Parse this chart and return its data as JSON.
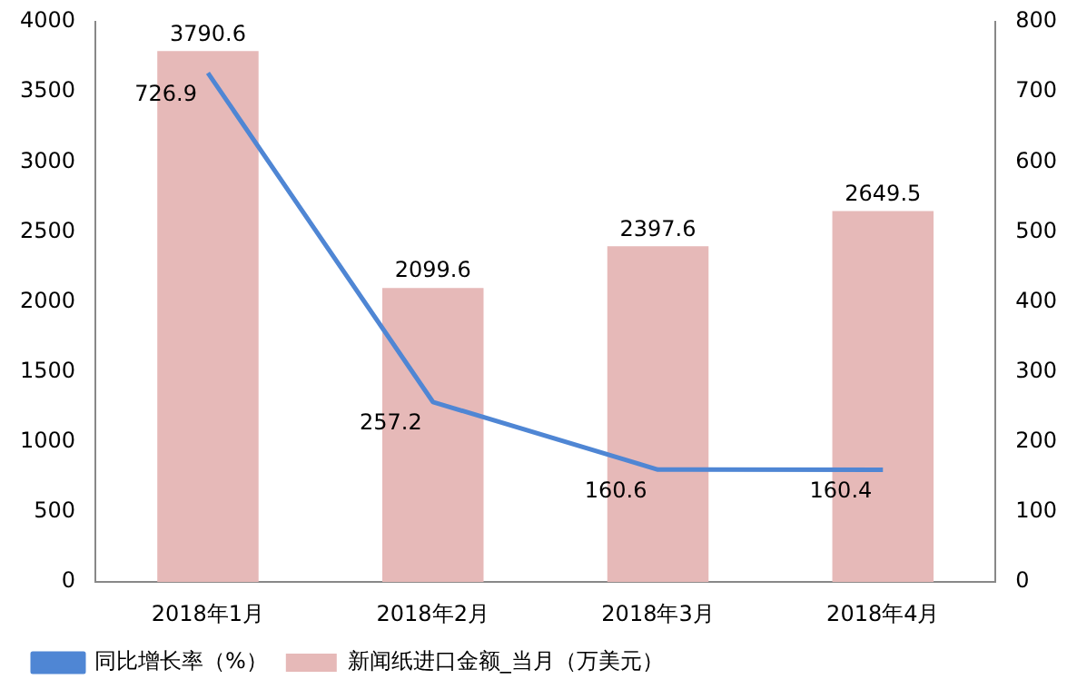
{
  "chart_data": {
    "type": "bar",
    "categories": [
      "2018年1月",
      "2018年2月",
      "2018年3月",
      "2018年4月"
    ],
    "series": [
      {
        "name": "新闻纸进口金额_当月（万美元）",
        "color": "#e6b9b8",
        "values": [
          3790.6,
          2099.6,
          2397.6,
          2649.5
        ]
      },
      {
        "name": "同比增长率（%）",
        "type": "line",
        "axis": "y2",
        "color": "#4f86d4",
        "values": [
          726.9,
          257.2,
          160.6,
          160.4
        ]
      }
    ],
    "ylim": [
      0,
      4000
    ],
    "yticks": [
      0,
      500,
      1000,
      1500,
      2000,
      2500,
      3000,
      3500,
      4000
    ],
    "y2lim": [
      0,
      800
    ],
    "y2ticks": [
      0,
      100,
      200,
      300,
      400,
      500,
      600,
      700,
      800
    ],
    "data_labels": true,
    "legend": "bottom",
    "grid": false,
    "marker": "none",
    "line_style": "solid"
  }
}
